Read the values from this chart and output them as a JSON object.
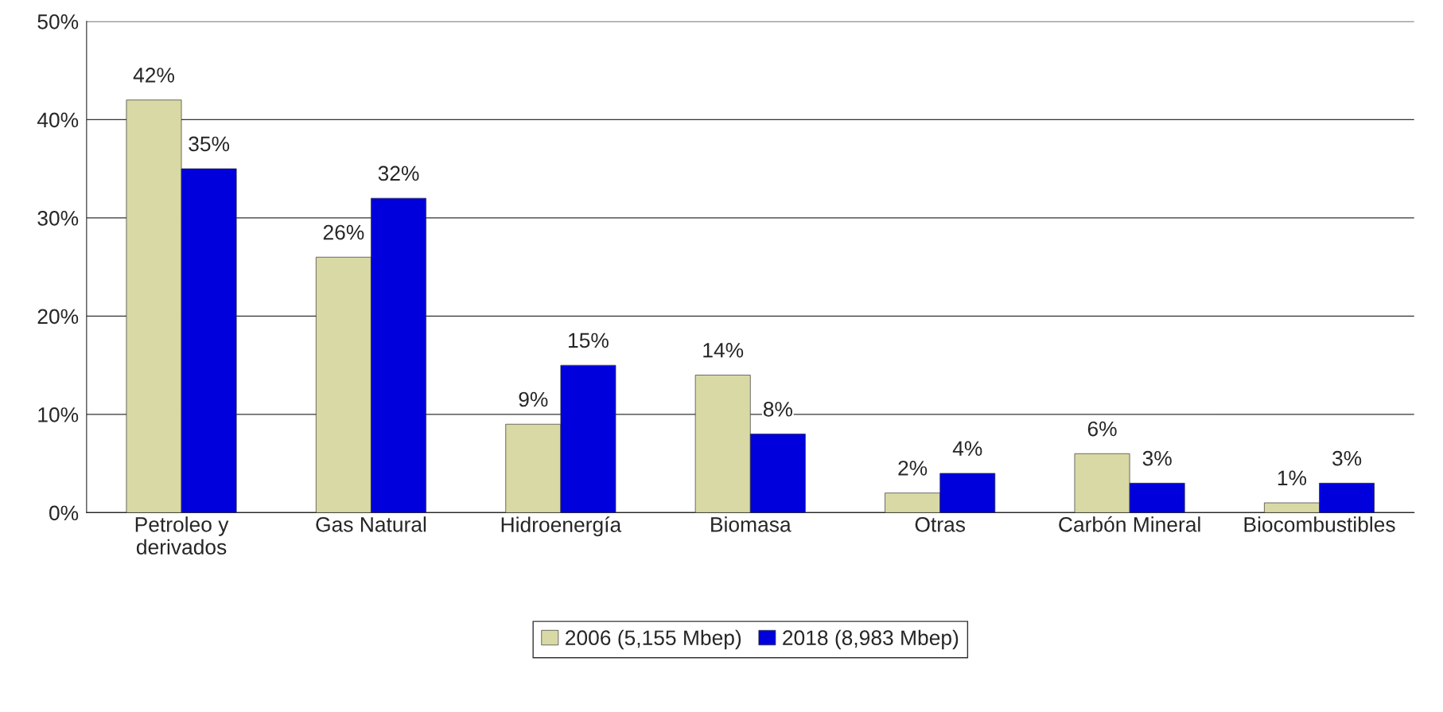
{
  "chart_data": {
    "type": "bar",
    "categories": [
      "Petroleo y\nderivados",
      "Gas Natural",
      "Hidroenergía",
      "Biomasa",
      "Otras",
      "Carbón Mineral",
      "Biocombustibles"
    ],
    "series": [
      {
        "name": "2006 (5,155 Mbep)",
        "color": "#d9d9a6",
        "values": [
          42,
          26,
          9,
          14,
          2,
          6,
          1
        ],
        "value_labels": [
          "42%",
          "26%",
          "9%",
          "14%",
          "2%",
          "6%",
          "1%"
        ]
      },
      {
        "name": "2018 (8,983 Mbep)",
        "color": "#0000dd",
        "values": [
          35,
          32,
          15,
          8,
          4,
          3,
          3
        ],
        "value_labels": [
          "35%",
          "32%",
          "15%",
          "8%",
          "4%",
          "3%",
          "3%"
        ]
      }
    ],
    "ylim": [
      0,
      50
    ],
    "yticks": [
      {
        "value": 0,
        "label": "0%"
      },
      {
        "value": 10,
        "label": "10%"
      },
      {
        "value": 20,
        "label": "20%"
      },
      {
        "value": 30,
        "label": "30%"
      },
      {
        "value": 40,
        "label": "40%"
      },
      {
        "value": 50,
        "label": "50%"
      }
    ],
    "grid": "y",
    "legend": "bottom"
  }
}
